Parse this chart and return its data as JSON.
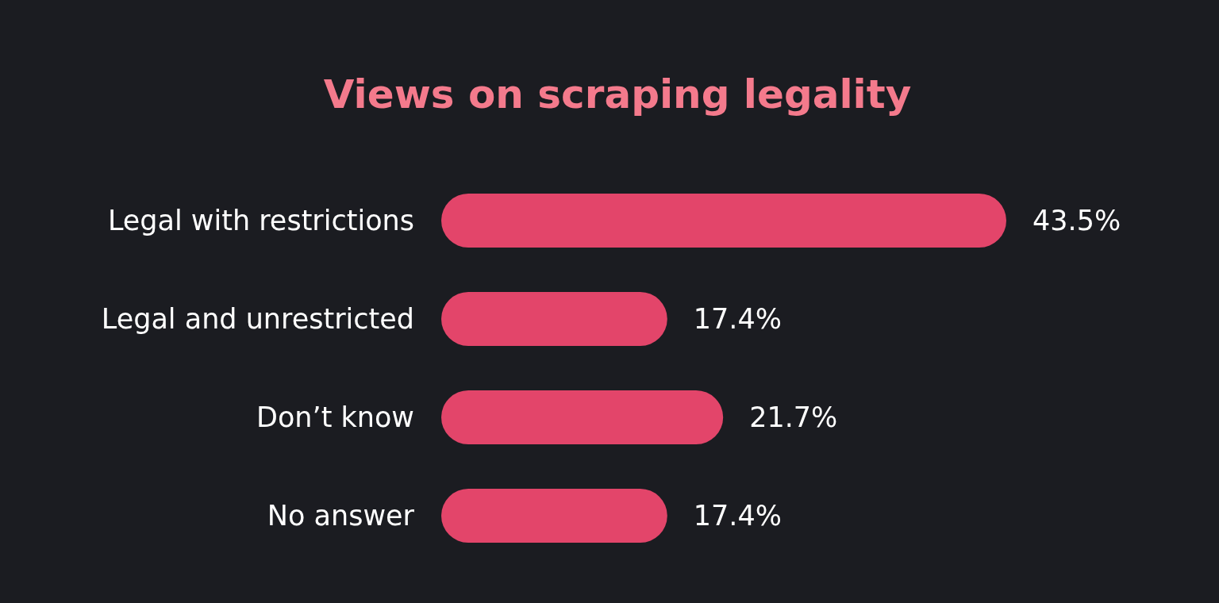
{
  "chart_data": {
    "type": "bar",
    "orientation": "horizontal",
    "title": "Views on scraping legality",
    "categories": [
      "Legal with restrictions",
      "Legal and unrestricted",
      "Don’t know",
      "No answer"
    ],
    "values": [
      43.5,
      17.4,
      21.7,
      17.4
    ],
    "value_labels": [
      "43.5%",
      "17.4%",
      "21.7%",
      "17.4%"
    ],
    "color": "#e3456a"
  }
}
